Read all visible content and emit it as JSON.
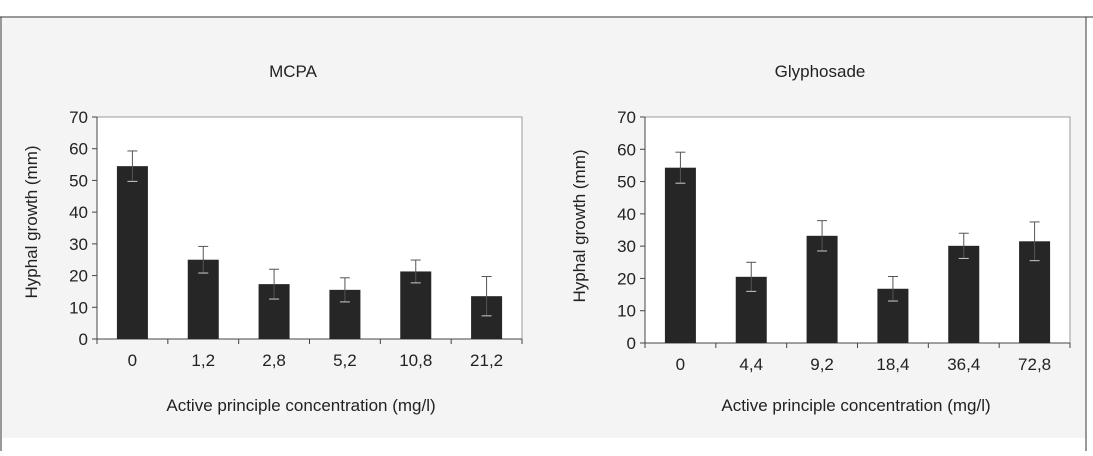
{
  "chart_data": [
    {
      "type": "bar",
      "title": "MCPA",
      "xlabel": "Active principle concentration (mg/l)",
      "ylabel": "Hyphal growth (mm)",
      "categories": [
        "0",
        "1,2",
        "2,8",
        "5,2",
        "10,8",
        "21,2"
      ],
      "values": [
        54.5,
        25,
        17.3,
        15.5,
        21.3,
        13.5
      ],
      "errors": [
        4.8,
        4.2,
        4.7,
        3.8,
        3.6,
        6.2
      ],
      "ylim": [
        0,
        70
      ],
      "yticks": [
        "0",
        "10",
        "20",
        "30",
        "40",
        "50",
        "60",
        "70"
      ],
      "grid": false,
      "bar_color": "#262626"
    },
    {
      "type": "bar",
      "title": "Glyphosade",
      "xlabel": "Active principle concentration (mg/l)",
      "ylabel": "Hyphal growth (mm)",
      "categories": [
        "0",
        "4,4",
        "9,2",
        "18,4",
        "36,4",
        "72,8"
      ],
      "values": [
        54.3,
        20.5,
        33.2,
        16.8,
        30.1,
        31.5
      ],
      "errors": [
        4.8,
        4.5,
        4.7,
        3.8,
        3.9,
        6.0
      ],
      "ylim": [
        0,
        70
      ],
      "yticks": [
        "0",
        "10",
        "20",
        "30",
        "40",
        "50",
        "60",
        "70"
      ],
      "grid": false,
      "bar_color": "#262626"
    }
  ]
}
